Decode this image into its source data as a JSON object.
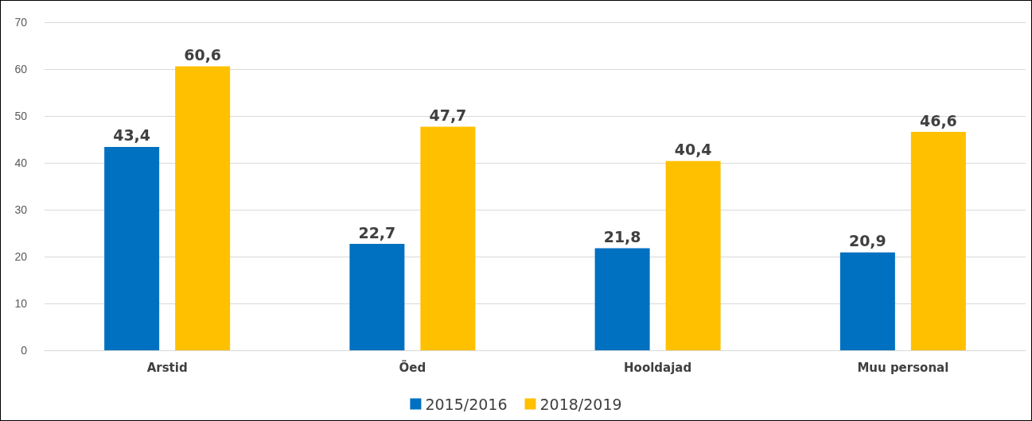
{
  "chart_data": {
    "type": "bar",
    "categories": [
      "Arstid",
      "Õed",
      "Hooldajad",
      "Muu personal"
    ],
    "series": [
      {
        "name": "2015/2016",
        "color": "#0070c0",
        "values": [
          43.4,
          22.7,
          21.8,
          20.9
        ]
      },
      {
        "name": "2018/2019",
        "color": "#ffc000",
        "values": [
          60.6,
          47.7,
          40.4,
          46.6
        ]
      }
    ],
    "value_labels": [
      [
        "43,4",
        "22,7",
        "21,8",
        "20,9"
      ],
      [
        "60,6",
        "47,7",
        "40,4",
        "46,6"
      ]
    ],
    "ylim": [
      0,
      70
    ],
    "yticks": [
      0,
      10,
      20,
      30,
      40,
      50,
      60,
      70
    ],
    "grid": "y",
    "legend": "bottom"
  }
}
